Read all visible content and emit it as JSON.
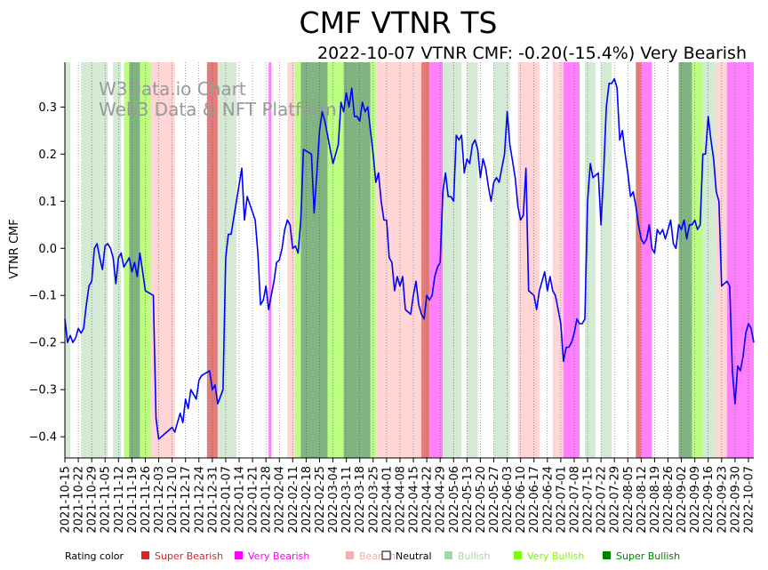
{
  "chart_data": {
    "type": "line",
    "title": "CMF VTNR TS",
    "subtitle": "2022-10-07 VTNR CMF: -0.20(-15.4%) Very Bearish",
    "xlabel": "",
    "ylabel": "VTNR CMF",
    "ylim": [
      -0.445,
      0.395
    ],
    "yticks": [
      -0.4,
      -0.3,
      -0.2,
      -0.1,
      0.0,
      0.1,
      0.2,
      0.3
    ],
    "ytick_labels": [
      "−0.4",
      "−0.3",
      "−0.2",
      "−0.1",
      "0.0",
      "0.1",
      "0.2",
      "0.3"
    ],
    "x_start": "2021-10-15",
    "x_end": "2022-10-07",
    "xtick_labels": [
      "2021-10-15",
      "2021-10-22",
      "2021-10-29",
      "2021-11-05",
      "2021-11-12",
      "2021-11-19",
      "2021-11-26",
      "2021-12-03",
      "2021-12-10",
      "2021-12-17",
      "2021-12-24",
      "2021-12-31",
      "2022-01-07",
      "2022-01-14",
      "2022-01-21",
      "2022-01-28",
      "2022-02-04",
      "2022-02-11",
      "2022-02-18",
      "2022-02-25",
      "2022-03-04",
      "2022-03-11",
      "2022-03-18",
      "2022-03-25",
      "2022-04-01",
      "2022-04-08",
      "2022-04-15",
      "2022-04-22",
      "2022-04-29",
      "2022-05-06",
      "2022-05-13",
      "2022-05-20",
      "2022-05-27",
      "2022-06-03",
      "2022-06-10",
      "2022-06-17",
      "2022-06-24",
      "2022-07-01",
      "2022-07-08",
      "2022-07-15",
      "2022-07-22",
      "2022-07-29",
      "2022-08-05",
      "2022-08-12",
      "2022-08-19",
      "2022-08-26",
      "2022-09-02",
      "2022-09-09",
      "2022-09-16",
      "2022-09-23",
      "2022-09-30",
      "2022-10-07"
    ],
    "series": [
      {
        "name": "VTNR CMF",
        "color": "#0000ff",
        "points": [
          [
            0,
            -0.15
          ],
          [
            1,
            -0.2
          ],
          [
            2,
            -0.185
          ],
          [
            3,
            -0.2
          ],
          [
            4,
            -0.19
          ],
          [
            5,
            -0.17
          ],
          [
            6,
            -0.18
          ],
          [
            7,
            -0.17
          ],
          [
            8,
            -0.12
          ],
          [
            9,
            -0.08
          ],
          [
            10,
            -0.07
          ],
          [
            11,
            0.0
          ],
          [
            12,
            0.01
          ],
          [
            13,
            -0.02
          ],
          [
            14,
            -0.045
          ],
          [
            15,
            0.005
          ],
          [
            16,
            0.01
          ],
          [
            17,
            0.0
          ],
          [
            18,
            -0.02
          ],
          [
            19,
            -0.075
          ],
          [
            20,
            -0.02
          ],
          [
            21,
            -0.01
          ],
          [
            22,
            -0.04
          ],
          [
            23,
            -0.03
          ],
          [
            24,
            -0.02
          ],
          [
            25,
            -0.05
          ],
          [
            26,
            -0.03
          ],
          [
            27,
            -0.06
          ],
          [
            28,
            -0.01
          ],
          [
            29,
            -0.05
          ],
          [
            30,
            -0.09
          ],
          [
            33,
            -0.1
          ],
          [
            34,
            -0.36
          ],
          [
            35,
            -0.405
          ],
          [
            38,
            -0.39
          ],
          [
            40,
            -0.38
          ],
          [
            41,
            -0.39
          ],
          [
            43,
            -0.35
          ],
          [
            44,
            -0.37
          ],
          [
            45,
            -0.32
          ],
          [
            46,
            -0.34
          ],
          [
            47,
            -0.3
          ],
          [
            49,
            -0.32
          ],
          [
            50,
            -0.28
          ],
          [
            51,
            -0.27
          ],
          [
            54,
            -0.26
          ],
          [
            55,
            -0.3
          ],
          [
            56,
            -0.29
          ],
          [
            57,
            -0.33
          ],
          [
            59,
            -0.3
          ],
          [
            60,
            -0.02
          ],
          [
            61,
            0.03
          ],
          [
            62,
            0.03
          ],
          [
            64,
            0.1
          ],
          [
            66,
            0.17
          ],
          [
            67,
            0.06
          ],
          [
            68,
            0.11
          ],
          [
            71,
            0.06
          ],
          [
            72,
            -0.01
          ],
          [
            73,
            -0.12
          ],
          [
            74,
            -0.11
          ],
          [
            75,
            -0.08
          ],
          [
            76,
            -0.13
          ],
          [
            78,
            -0.07
          ],
          [
            79,
            -0.03
          ],
          [
            80,
            -0.025
          ],
          [
            81,
            0.0
          ],
          [
            82,
            0.04
          ],
          [
            83,
            0.06
          ],
          [
            84,
            0.05
          ],
          [
            85,
            0.0
          ],
          [
            86,
            0.005
          ],
          [
            87,
            -0.01
          ],
          [
            88,
            0.06
          ],
          [
            89,
            0.21
          ],
          [
            92,
            0.2
          ],
          [
            93,
            0.075
          ],
          [
            94,
            0.16
          ],
          [
            95,
            0.25
          ],
          [
            96,
            0.29
          ],
          [
            97,
            0.27
          ],
          [
            98,
            0.24
          ],
          [
            99,
            0.21
          ],
          [
            100,
            0.18
          ],
          [
            101,
            0.2
          ],
          [
            102,
            0.22
          ],
          [
            103,
            0.31
          ],
          [
            104,
            0.29
          ],
          [
            105,
            0.33
          ],
          [
            106,
            0.3
          ],
          [
            107,
            0.34
          ],
          [
            108,
            0.28
          ],
          [
            109,
            0.28
          ],
          [
            110,
            0.27
          ],
          [
            111,
            0.31
          ],
          [
            112,
            0.29
          ],
          [
            113,
            0.3
          ],
          [
            115,
            0.2
          ],
          [
            116,
            0.14
          ],
          [
            117,
            0.16
          ],
          [
            118,
            0.1
          ],
          [
            119,
            0.06
          ],
          [
            120,
            0.06
          ],
          [
            121,
            -0.02
          ],
          [
            122,
            -0.03
          ],
          [
            123,
            -0.09
          ],
          [
            124,
            -0.06
          ],
          [
            125,
            -0.08
          ],
          [
            126,
            -0.06
          ],
          [
            127,
            -0.13
          ],
          [
            129,
            -0.14
          ],
          [
            130,
            -0.1
          ],
          [
            131,
            -0.07
          ],
          [
            132,
            -0.12
          ],
          [
            133,
            -0.14
          ],
          [
            134,
            -0.15
          ],
          [
            135,
            -0.1
          ],
          [
            136,
            -0.11
          ],
          [
            137,
            -0.1
          ],
          [
            138,
            -0.06
          ],
          [
            139,
            -0.04
          ],
          [
            140,
            -0.03
          ],
          [
            141,
            0.12
          ],
          [
            142,
            0.16
          ],
          [
            143,
            0.11
          ],
          [
            144,
            0.11
          ],
          [
            145,
            0.1
          ],
          [
            146,
            0.24
          ],
          [
            147,
            0.23
          ],
          [
            148,
            0.24
          ],
          [
            149,
            0.16
          ],
          [
            150,
            0.19
          ],
          [
            151,
            0.18
          ],
          [
            152,
            0.22
          ],
          [
            153,
            0.23
          ],
          [
            154,
            0.21
          ],
          [
            155,
            0.15
          ],
          [
            156,
            0.19
          ],
          [
            157,
            0.17
          ],
          [
            158,
            0.13
          ],
          [
            159,
            0.1
          ],
          [
            160,
            0.14
          ],
          [
            161,
            0.15
          ],
          [
            162,
            0.14
          ],
          [
            163,
            0.17
          ],
          [
            164,
            0.2
          ],
          [
            165,
            0.29
          ],
          [
            166,
            0.22
          ],
          [
            168,
            0.15
          ],
          [
            169,
            0.09
          ],
          [
            170,
            0.06
          ],
          [
            171,
            0.07
          ],
          [
            172,
            0.17
          ],
          [
            173,
            -0.09
          ],
          [
            175,
            -0.1
          ],
          [
            176,
            -0.13
          ],
          [
            177,
            -0.09
          ],
          [
            178,
            -0.07
          ],
          [
            179,
            -0.05
          ],
          [
            180,
            -0.09
          ],
          [
            181,
            -0.06
          ],
          [
            182,
            -0.09
          ],
          [
            183,
            -0.1
          ],
          [
            184,
            -0.13
          ],
          [
            185,
            -0.16
          ],
          [
            186,
            -0.24
          ],
          [
            187,
            -0.21
          ],
          [
            188,
            -0.21
          ],
          [
            189,
            -0.2
          ],
          [
            190,
            -0.18
          ],
          [
            191,
            -0.15
          ],
          [
            192,
            -0.16
          ],
          [
            193,
            -0.16
          ],
          [
            194,
            -0.15
          ],
          [
            195,
            0.1
          ],
          [
            196,
            0.18
          ],
          [
            197,
            0.15
          ],
          [
            199,
            0.16
          ],
          [
            200,
            0.05
          ],
          [
            201,
            0.16
          ],
          [
            202,
            0.3
          ],
          [
            203,
            0.35
          ],
          [
            204,
            0.35
          ],
          [
            205,
            0.36
          ],
          [
            206,
            0.34
          ],
          [
            207,
            0.23
          ],
          [
            208,
            0.25
          ],
          [
            209,
            0.2
          ],
          [
            210,
            0.16
          ],
          [
            211,
            0.11
          ],
          [
            212,
            0.12
          ],
          [
            213,
            0.09
          ],
          [
            214,
            0.05
          ],
          [
            215,
            0.02
          ],
          [
            216,
            0.01
          ],
          [
            217,
            0.02
          ],
          [
            218,
            0.05
          ],
          [
            219,
            0.0
          ],
          [
            220,
            -0.01
          ],
          [
            221,
            0.04
          ],
          [
            222,
            0.03
          ],
          [
            223,
            0.04
          ],
          [
            224,
            0.02
          ],
          [
            225,
            0.04
          ],
          [
            226,
            0.06
          ],
          [
            227,
            0.01
          ],
          [
            228,
            0.0
          ],
          [
            229,
            0.05
          ],
          [
            230,
            0.04
          ],
          [
            231,
            0.06
          ],
          [
            232,
            0.02
          ],
          [
            233,
            0.05
          ],
          [
            234,
            0.05
          ],
          [
            235,
            0.06
          ],
          [
            236,
            0.04
          ],
          [
            237,
            0.05
          ],
          [
            238,
            0.2
          ],
          [
            239,
            0.2
          ],
          [
            240,
            0.28
          ],
          [
            241,
            0.23
          ],
          [
            242,
            0.19
          ],
          [
            243,
            0.12
          ],
          [
            244,
            0.1
          ],
          [
            245,
            -0.08
          ],
          [
            247,
            -0.07
          ],
          [
            248,
            -0.08
          ],
          [
            249,
            -0.26
          ],
          [
            250,
            -0.33
          ],
          [
            251,
            -0.25
          ],
          [
            252,
            -0.26
          ],
          [
            253,
            -0.23
          ],
          [
            254,
            -0.18
          ],
          [
            255,
            -0.16
          ],
          [
            256,
            -0.17
          ],
          [
            257,
            -0.2
          ]
        ]
      }
    ],
    "rating_bands": [
      {
        "start": 0,
        "end": 2,
        "rating": "Bullish"
      },
      {
        "start": 6,
        "end": 16,
        "rating": "Bullish"
      },
      {
        "start": 18,
        "end": 21,
        "rating": "Bullish"
      },
      {
        "start": 22,
        "end": 24,
        "rating": "Very Bullish"
      },
      {
        "start": 24,
        "end": 28,
        "rating": "Super Bullish"
      },
      {
        "start": 28,
        "end": 32,
        "rating": "Very Bullish"
      },
      {
        "start": 32,
        "end": 41,
        "rating": "Bearish"
      },
      {
        "start": 53,
        "end": 57,
        "rating": "Super Bearish"
      },
      {
        "start": 57,
        "end": 64,
        "rating": "Bullish"
      },
      {
        "start": 76,
        "end": 77,
        "rating": "Very Bearish"
      },
      {
        "start": 83,
        "end": 86,
        "rating": "Bearish"
      },
      {
        "start": 86,
        "end": 88,
        "rating": "Very Bullish"
      },
      {
        "start": 88,
        "end": 98,
        "rating": "Super Bullish"
      },
      {
        "start": 98,
        "end": 104,
        "rating": "Very Bullish"
      },
      {
        "start": 104,
        "end": 114,
        "rating": "Super Bullish"
      },
      {
        "start": 114,
        "end": 116,
        "rating": "Very Bullish"
      },
      {
        "start": 116,
        "end": 133,
        "rating": "Bearish"
      },
      {
        "start": 133,
        "end": 136,
        "rating": "Super Bearish"
      },
      {
        "start": 136,
        "end": 141,
        "rating": "Very Bearish"
      },
      {
        "start": 141,
        "end": 148,
        "rating": "Bullish"
      },
      {
        "start": 150,
        "end": 154,
        "rating": "Bullish"
      },
      {
        "start": 160,
        "end": 166,
        "rating": "Bullish"
      },
      {
        "start": 169,
        "end": 177,
        "rating": "Bearish"
      },
      {
        "start": 182,
        "end": 186,
        "rating": "Bearish"
      },
      {
        "start": 186,
        "end": 192,
        "rating": "Very Bearish"
      },
      {
        "start": 194,
        "end": 198,
        "rating": "Bullish"
      },
      {
        "start": 200,
        "end": 204,
        "rating": "Bullish"
      },
      {
        "start": 213,
        "end": 215,
        "rating": "Super Bearish"
      },
      {
        "start": 215,
        "end": 219,
        "rating": "Very Bearish"
      },
      {
        "start": 229,
        "end": 234,
        "rating": "Super Bullish"
      },
      {
        "start": 234,
        "end": 238,
        "rating": "Very Bullish"
      },
      {
        "start": 238,
        "end": 243,
        "rating": "Bullish"
      },
      {
        "start": 243,
        "end": 247,
        "rating": "Bearish"
      },
      {
        "start": 247,
        "end": 257,
        "rating": "Very Bearish"
      }
    ],
    "watermark": [
      "W3Data.io Chart",
      "Web3 Data & NFT Platform"
    ],
    "legend": {
      "placement": "bottom",
      "title": "Rating color",
      "entries": [
        {
          "label": "Super Bearish",
          "color": "#d62728"
        },
        {
          "label": "Very Bearish",
          "color": "#ff00ff"
        },
        {
          "label": "Bearish",
          "color": "#ffaaaa"
        },
        {
          "label": "Neutral",
          "color": "#ffffff"
        },
        {
          "label": "Bullish",
          "color": "#a9d6a9"
        },
        {
          "label": "Very Bullish",
          "color": "#7cfc00"
        },
        {
          "label": "Super Bullish",
          "color": "#008000"
        }
      ]
    },
    "band_colors": {
      "Super Bearish": "#e47b7b",
      "Very Bearish": "#ff80ff",
      "Bearish": "#ffd5d5",
      "Bullish": "#d4ead4",
      "Very Bullish": "#bcff80",
      "Super Bullish": "#80b480"
    },
    "grid": false
  }
}
